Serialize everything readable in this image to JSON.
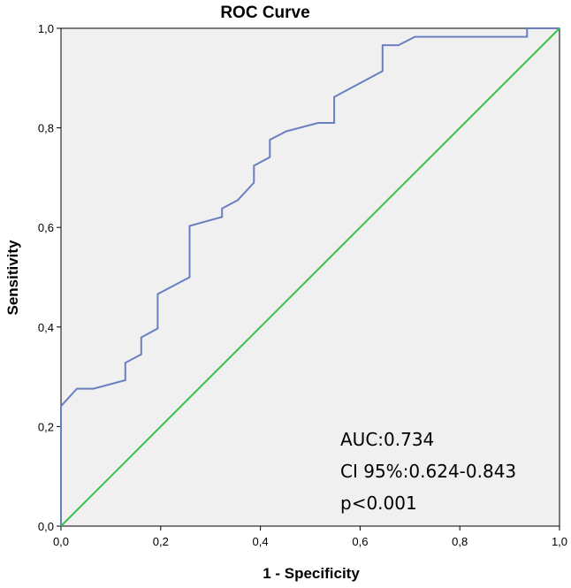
{
  "chart_data": {
    "type": "line",
    "title": "ROC Curve",
    "xlabel": "1 - Specificity",
    "ylabel": "Sensitivity",
    "xlim": [
      0,
      1
    ],
    "ylim": [
      0,
      1
    ],
    "x_tick_labels": [
      "0,0",
      "0,2",
      "0,4",
      "0,6",
      "0,8",
      "1,0"
    ],
    "y_tick_labels": [
      "0,0",
      "0,2",
      "0,4",
      "0,6",
      "0,8",
      "1,0"
    ],
    "grid": false,
    "background_color": "#f0f0f0",
    "series": [
      {
        "color": "#6a7fc0",
        "x": [
          0,
          0,
          0.032,
          0.065,
          0.129,
          0.129,
          0.161,
          0.161,
          0.194,
          0.194,
          0.258,
          0.258,
          0.323,
          0.323,
          0.355,
          0.387,
          0.387,
          0.419,
          0.419,
          0.452,
          0.516,
          0.548,
          0.548,
          0.645,
          0.645,
          0.677,
          0.71,
          0.935,
          0.935,
          1.0
        ],
        "y": [
          0,
          0.241,
          0.276,
          0.276,
          0.293,
          0.328,
          0.345,
          0.379,
          0.397,
          0.466,
          0.5,
          0.603,
          0.621,
          0.638,
          0.655,
          0.69,
          0.724,
          0.741,
          0.776,
          0.793,
          0.81,
          0.81,
          0.862,
          0.914,
          0.966,
          0.966,
          0.983,
          0.983,
          1.0,
          1.0
        ]
      },
      {
        "color": "#3cc04c",
        "x": [
          0,
          1
        ],
        "y": [
          0,
          1
        ]
      }
    ],
    "annotations": [
      "AUC:0.734",
      "CI 95%:0.624-0.843",
      "p<0.001"
    ]
  }
}
